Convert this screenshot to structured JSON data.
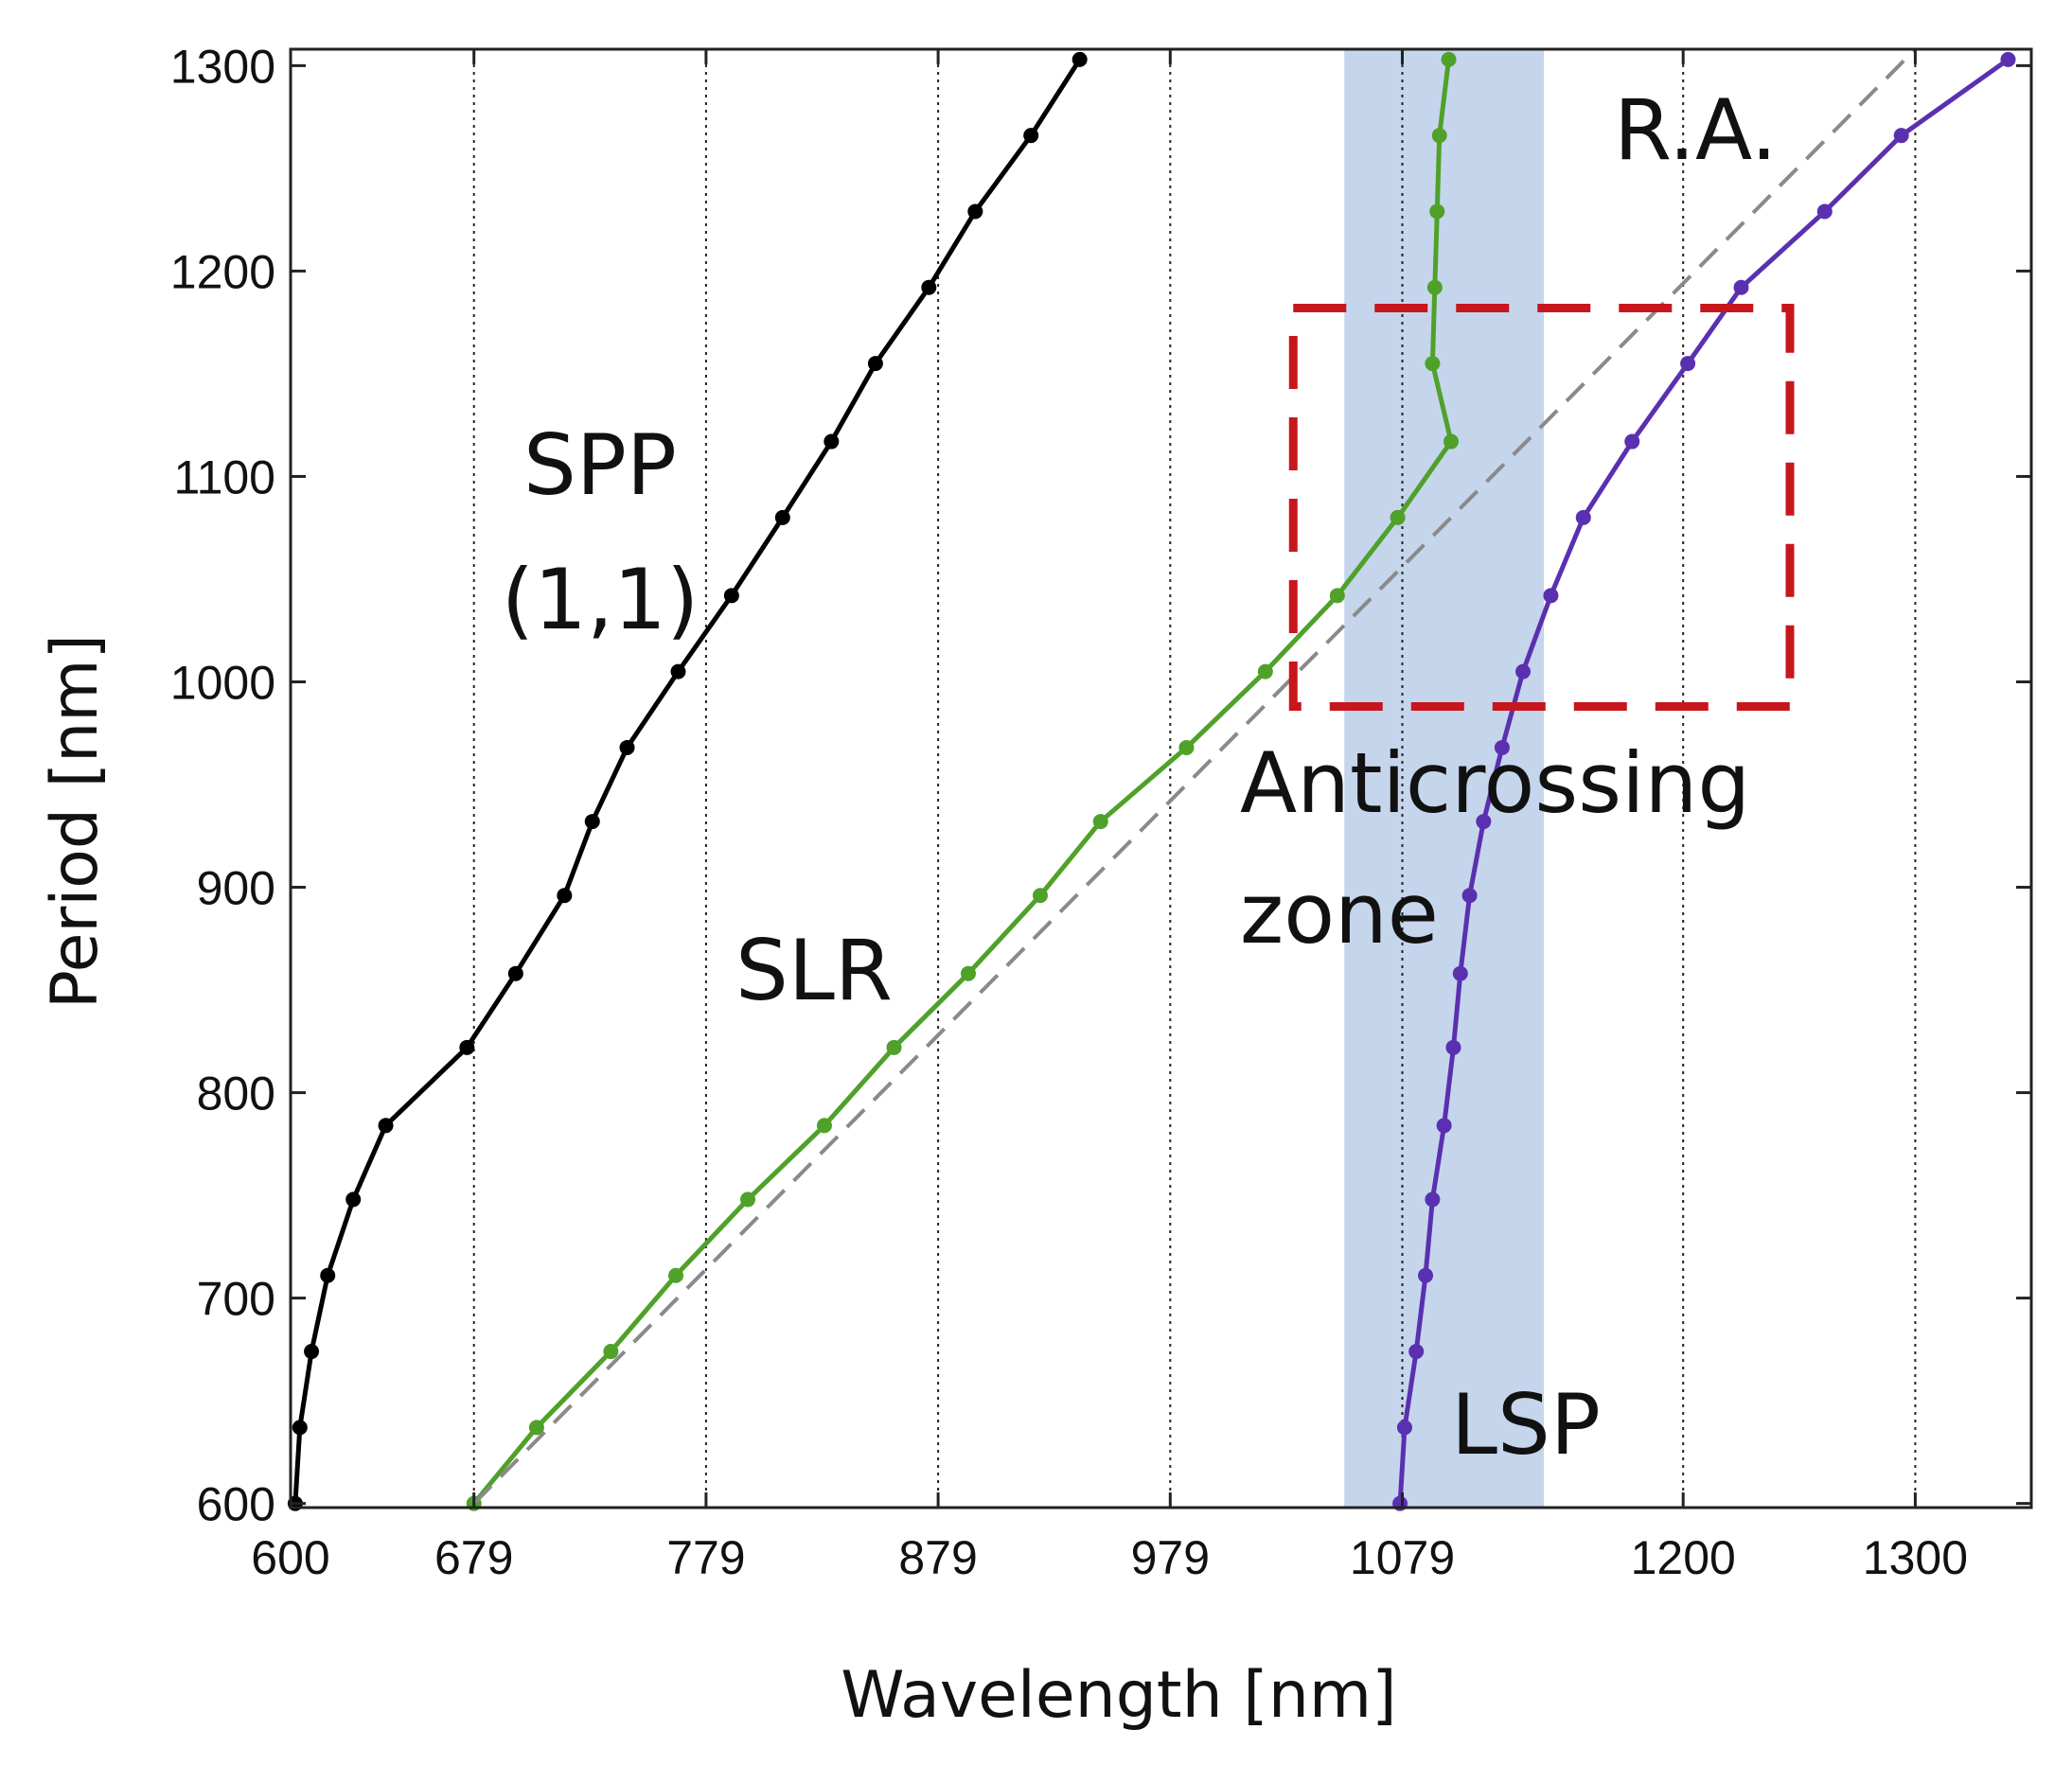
{
  "chart_data": {
    "type": "line",
    "xlabel": "Wavelength [nm]",
    "ylabel": "Period [nm]",
    "xlim": [
      600,
      1350
    ],
    "ylim": [
      598,
      1308
    ],
    "x_tick_values": [
      600,
      679,
      779,
      879,
      979,
      1079,
      1200,
      1300
    ],
    "x_tick_labels": [
      "600",
      "679",
      "779",
      "879",
      "979",
      "1079",
      "1200",
      "1300"
    ],
    "y_tick_values": [
      600,
      700,
      800,
      900,
      1000,
      1100,
      1200,
      1300
    ],
    "y_tick_labels": [
      "600",
      "700",
      "800",
      "900",
      "1000",
      "1100",
      "1200",
      "1300"
    ],
    "grid": "vertical dotted lines at x ticks",
    "shaded_band": {
      "x": [
        1054,
        1140
      ],
      "color": "#c5d5ec"
    },
    "highlight_box": {
      "x": [
        1032,
        1246
      ],
      "y": [
        988,
        1182
      ],
      "color": "#c8161d",
      "label_lines": [
        "Anticrossing",
        "zone"
      ]
    },
    "series": [
      {
        "name": "SPP (1,1)",
        "color": "#000000",
        "points": [
          [
            602,
            600
          ],
          [
            604,
            637
          ],
          [
            609,
            674
          ],
          [
            616,
            711
          ],
          [
            627,
            748
          ],
          [
            641,
            784
          ],
          [
            676,
            822
          ],
          [
            697,
            858
          ],
          [
            718,
            896
          ],
          [
            730,
            932
          ],
          [
            745,
            968
          ],
          [
            767,
            1005
          ],
          [
            790,
            1042
          ],
          [
            812,
            1080
          ],
          [
            833,
            1117
          ],
          [
            852,
            1155
          ],
          [
            875,
            1192
          ],
          [
            895,
            1229
          ],
          [
            919,
            1266
          ],
          [
            940,
            1303
          ]
        ]
      },
      {
        "name": "SLR",
        "color": "#4fa12a",
        "points": [
          [
            679,
            600
          ],
          [
            706,
            637
          ],
          [
            738,
            674
          ],
          [
            766,
            711
          ],
          [
            797,
            748
          ],
          [
            830,
            784
          ],
          [
            860,
            822
          ],
          [
            892,
            858
          ],
          [
            923,
            896
          ],
          [
            949,
            932
          ],
          [
            986,
            968
          ],
          [
            1020,
            1005
          ],
          [
            1051,
            1042
          ],
          [
            1077,
            1080
          ],
          [
            1100,
            1117
          ],
          [
            1092,
            1155
          ],
          [
            1093,
            1192
          ],
          [
            1094,
            1229
          ],
          [
            1095,
            1266
          ],
          [
            1099,
            1303
          ]
        ]
      },
      {
        "name": "LSP",
        "color": "#5a30b0",
        "points": [
          [
            1078,
            600
          ],
          [
            1080,
            637
          ],
          [
            1085,
            674
          ],
          [
            1089,
            711
          ],
          [
            1092,
            748
          ],
          [
            1097,
            784
          ],
          [
            1101,
            822
          ],
          [
            1104,
            858
          ],
          [
            1108,
            896
          ],
          [
            1114,
            932
          ],
          [
            1122,
            968
          ],
          [
            1131,
            1005
          ],
          [
            1143,
            1042
          ],
          [
            1157,
            1080
          ],
          [
            1178,
            1117
          ],
          [
            1202,
            1155
          ],
          [
            1225,
            1192
          ],
          [
            1261,
            1229
          ],
          [
            1294,
            1266
          ],
          [
            1340,
            1303
          ]
        ]
      },
      {
        "name": "R.A.",
        "color": "#8a8a8a",
        "dashed": true,
        "points": [
          [
            679,
            600
          ],
          [
            1300,
            1308
          ]
        ]
      }
    ],
    "annotations": [
      {
        "series": "SPP (1,1)",
        "lines": [
          "SPP",
          "(1,1)"
        ]
      },
      {
        "series": "SLR",
        "lines": [
          "SLR"
        ]
      },
      {
        "series": "LSP",
        "lines": [
          "LSP"
        ]
      },
      {
        "series": "R.A.",
        "lines": [
          "R.A."
        ]
      }
    ]
  }
}
